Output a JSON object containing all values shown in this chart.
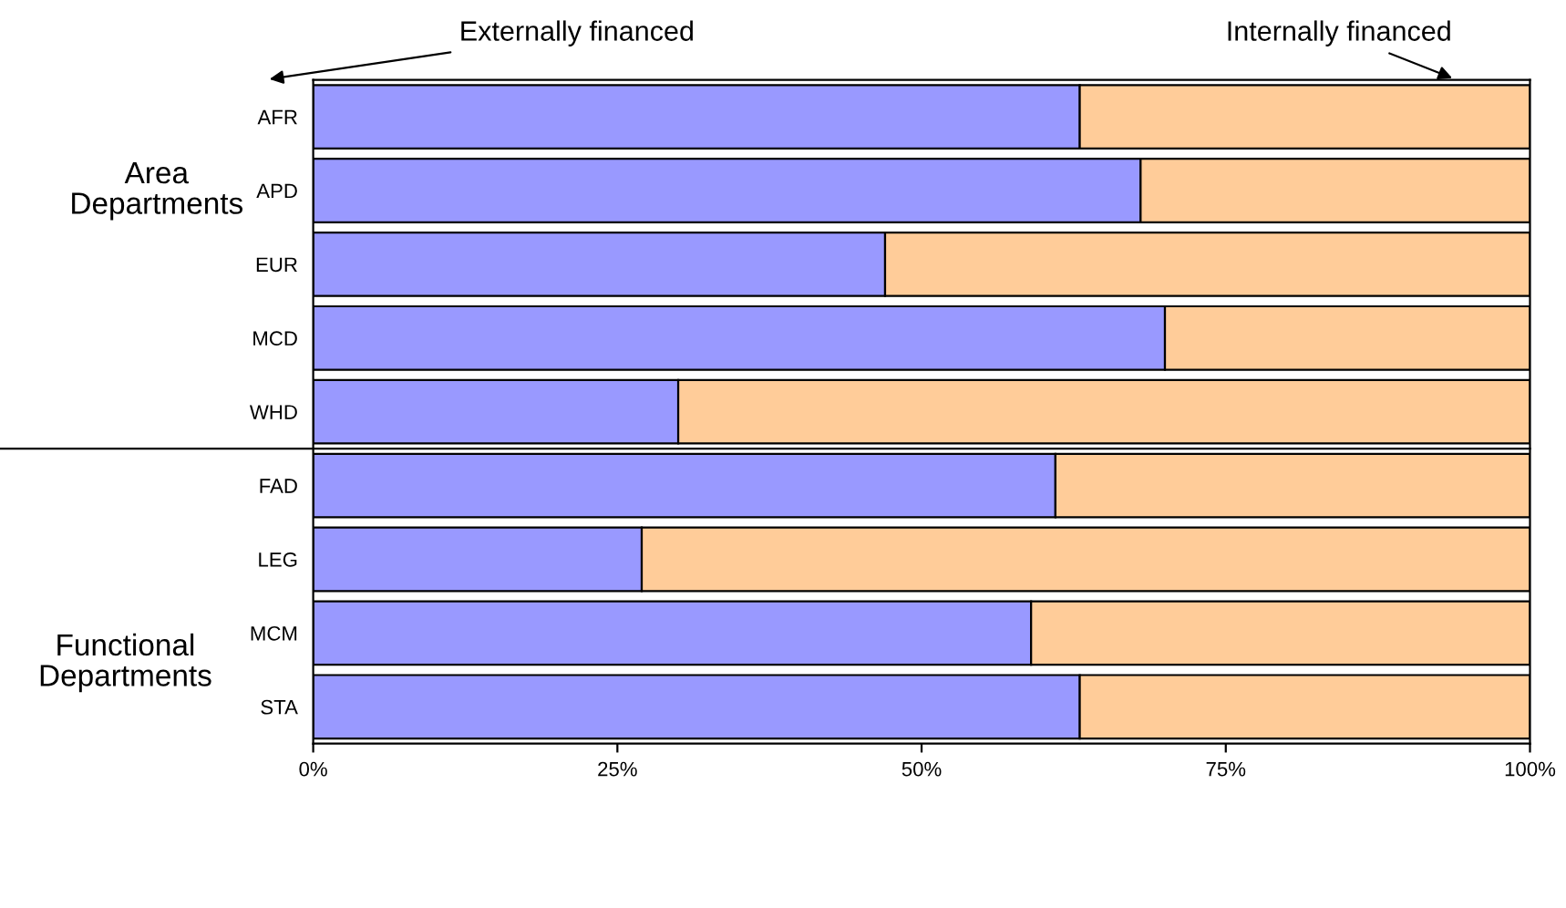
{
  "chart_data": {
    "type": "bar",
    "orientation": "horizontal",
    "stacked": true,
    "categories": [
      "AFR",
      "APD",
      "EUR",
      "MCD",
      "WHD",
      "FAD",
      "LEG",
      "MCM",
      "STA"
    ],
    "series": [
      {
        "name": "Externally financed",
        "color": "#9999ff",
        "values": [
          63,
          68,
          47,
          70,
          30,
          61,
          27,
          59,
          63
        ]
      },
      {
        "name": "Internally financed",
        "color": "#ffcc99",
        "values": [
          37,
          32,
          53,
          30,
          70,
          39,
          73,
          41,
          37
        ]
      }
    ],
    "xlim": [
      0,
      100
    ],
    "xticks": [
      {
        "value": 0,
        "label": "0%"
      },
      {
        "value": 25,
        "label": "25%"
      },
      {
        "value": 50,
        "label": "50%"
      },
      {
        "value": 75,
        "label": "75%"
      },
      {
        "value": 100,
        "label": "100%"
      }
    ],
    "annotations": [
      "Area Departments",
      "Functional Departments"
    ],
    "grid": false,
    "legend": false
  }
}
